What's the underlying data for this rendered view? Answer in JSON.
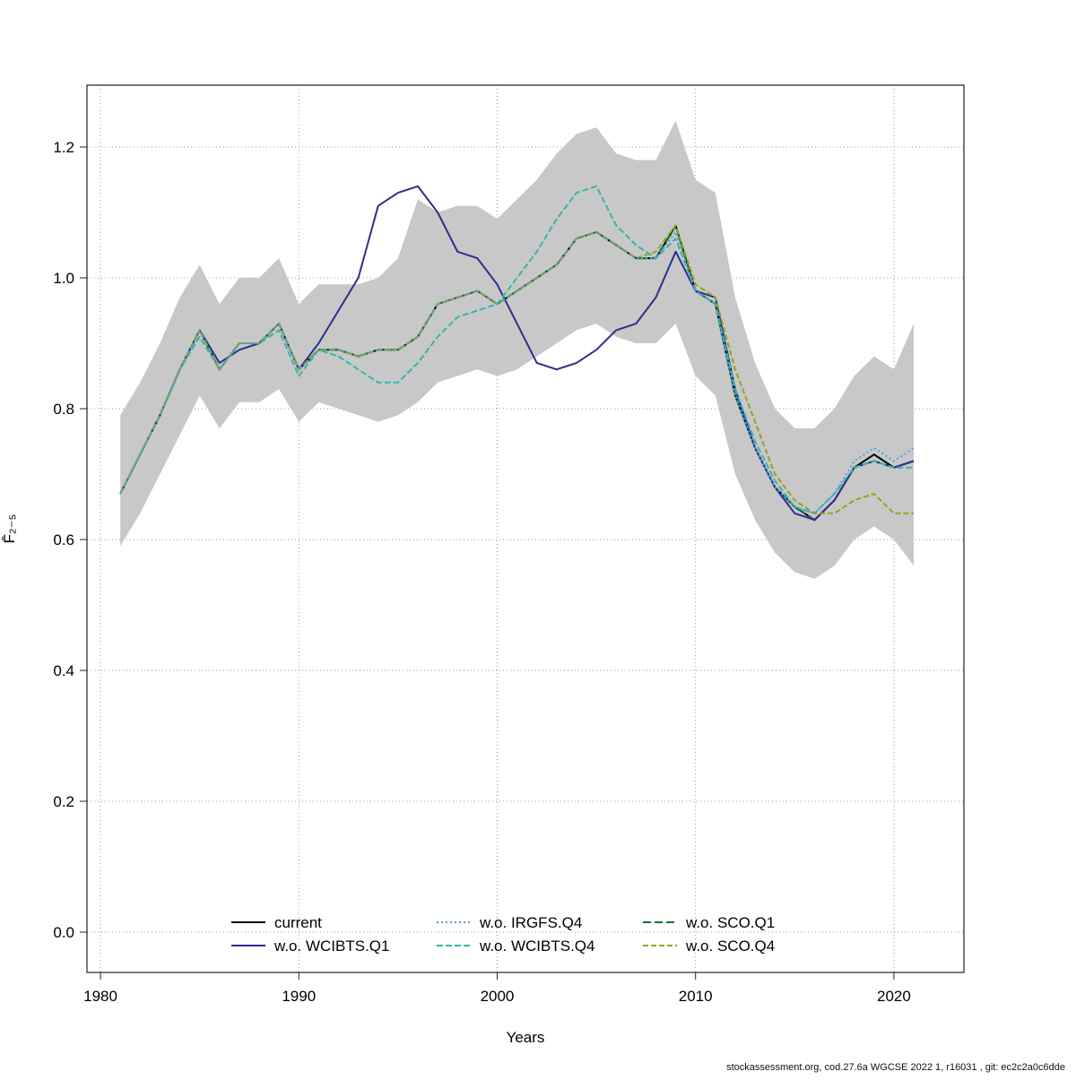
{
  "footer": {
    "text": "stockassessment.org, cod.27.6a WGCSE 2022 1, r16031 , git: ec2c2a0c6dde"
  },
  "chart_data": {
    "type": "line",
    "title": "",
    "xlabel": "Years",
    "ylabel": "F̄₂₋₅",
    "xlim": [
      1979.32,
      2023.53
    ],
    "ylim": [
      -0.0616,
      1.2945
    ],
    "xticks": [
      1980,
      1990,
      2000,
      2010,
      2020
    ],
    "yticks": [
      0.0,
      0.2,
      0.4,
      0.6,
      0.8,
      1.0,
      1.2
    ],
    "grid": true,
    "legend_position": "bottom-inside",
    "years": [
      1981,
      1982,
      1983,
      1984,
      1985,
      1986,
      1987,
      1988,
      1989,
      1990,
      1991,
      1992,
      1993,
      1994,
      1995,
      1996,
      1997,
      1998,
      1999,
      2000,
      2001,
      2002,
      2003,
      2004,
      2005,
      2006,
      2007,
      2008,
      2009,
      2010,
      2011,
      2012,
      2013,
      2014,
      2015,
      2016,
      2017,
      2018,
      2019,
      2020,
      2021
    ],
    "band": {
      "color": "#c8c8c8",
      "lower": [
        0.59,
        0.64,
        0.7,
        0.76,
        0.82,
        0.77,
        0.81,
        0.81,
        0.83,
        0.78,
        0.81,
        0.8,
        0.79,
        0.78,
        0.79,
        0.81,
        0.84,
        0.85,
        0.86,
        0.85,
        0.86,
        0.88,
        0.9,
        0.92,
        0.93,
        0.91,
        0.9,
        0.9,
        0.93,
        0.85,
        0.82,
        0.7,
        0.63,
        0.58,
        0.55,
        0.54,
        0.56,
        0.6,
        0.62,
        0.6,
        0.56
      ],
      "upper": [
        0.79,
        0.84,
        0.9,
        0.97,
        1.02,
        0.96,
        1.0,
        1.0,
        1.03,
        0.96,
        0.99,
        0.99,
        0.99,
        1.0,
        1.03,
        1.12,
        1.1,
        1.11,
        1.11,
        1.09,
        1.12,
        1.15,
        1.19,
        1.22,
        1.23,
        1.19,
        1.18,
        1.18,
        1.24,
        1.15,
        1.13,
        0.97,
        0.87,
        0.8,
        0.77,
        0.77,
        0.8,
        0.85,
        0.88,
        0.86,
        0.93
      ]
    },
    "series": [
      {
        "name": "current",
        "color": "#000000",
        "dash": "",
        "values": [
          0.67,
          0.73,
          0.79,
          0.86,
          0.92,
          0.86,
          0.9,
          0.9,
          0.93,
          0.86,
          0.89,
          0.89,
          0.88,
          0.89,
          0.89,
          0.91,
          0.96,
          0.97,
          0.98,
          0.96,
          0.98,
          1.0,
          1.02,
          1.06,
          1.07,
          1.05,
          1.03,
          1.03,
          1.08,
          0.98,
          0.96,
          0.82,
          0.74,
          0.68,
          0.65,
          0.63,
          0.66,
          0.71,
          0.73,
          0.71,
          0.72
        ]
      },
      {
        "name": "w.o. WCIBTS.Q1",
        "color": "#2e2e8f",
        "dash": "",
        "values": [
          0.67,
          0.73,
          0.79,
          0.86,
          0.92,
          0.87,
          0.89,
          0.9,
          0.93,
          0.86,
          0.9,
          0.95,
          1.0,
          1.11,
          1.13,
          1.14,
          1.1,
          1.04,
          1.03,
          0.99,
          0.93,
          0.87,
          0.86,
          0.87,
          0.89,
          0.92,
          0.93,
          0.97,
          1.04,
          0.98,
          0.97,
          0.83,
          0.74,
          0.68,
          0.64,
          0.63,
          0.66,
          0.71,
          0.72,
          0.71,
          0.72
        ]
      },
      {
        "name": "w.o. IRGFS.Q4",
        "color": "#4aa3df",
        "dash": "2,3",
        "values": [
          0.67,
          0.73,
          0.79,
          0.86,
          0.92,
          0.86,
          0.9,
          0.9,
          0.93,
          0.86,
          0.89,
          0.89,
          0.88,
          0.89,
          0.89,
          0.91,
          0.96,
          0.97,
          0.98,
          0.96,
          0.98,
          1.0,
          1.02,
          1.06,
          1.07,
          1.05,
          1.03,
          1.03,
          1.07,
          0.98,
          0.96,
          0.82,
          0.74,
          0.68,
          0.65,
          0.64,
          0.67,
          0.72,
          0.74,
          0.72,
          0.74
        ]
      },
      {
        "name": "w.o. WCIBTS.Q4",
        "color": "#35b5aa",
        "dash": "7,3",
        "values": [
          0.67,
          0.73,
          0.79,
          0.86,
          0.91,
          0.86,
          0.9,
          0.9,
          0.92,
          0.85,
          0.89,
          0.88,
          0.86,
          0.84,
          0.84,
          0.87,
          0.91,
          0.94,
          0.95,
          0.96,
          1.0,
          1.04,
          1.09,
          1.13,
          1.14,
          1.08,
          1.05,
          1.03,
          1.06,
          0.98,
          0.96,
          0.83,
          0.75,
          0.69,
          0.65,
          0.64,
          0.67,
          0.71,
          0.72,
          0.71,
          0.71
        ]
      },
      {
        "name": "w.o. SCO.Q1",
        "color": "#1c6b33",
        "dash": "9,4",
        "values": [
          0.67,
          0.73,
          0.79,
          0.86,
          0.92,
          0.86,
          0.9,
          0.9,
          0.93,
          0.86,
          0.89,
          0.89,
          0.88,
          0.89,
          0.89,
          0.91,
          0.96,
          0.97,
          0.98,
          0.96,
          0.98,
          1.0,
          1.02,
          1.06,
          1.07,
          1.05,
          1.03,
          1.03,
          1.08,
          0.98,
          0.96,
          0.82,
          0.74,
          0.68,
          0.65,
          0.63,
          0.66,
          0.71,
          0.72,
          0.71,
          0.72
        ]
      },
      {
        "name": "w.o. SCO.Q4",
        "color": "#9aa019",
        "dash": "6,3",
        "values": [
          0.67,
          0.73,
          0.79,
          0.86,
          0.92,
          0.86,
          0.9,
          0.9,
          0.93,
          0.86,
          0.89,
          0.89,
          0.88,
          0.89,
          0.89,
          0.91,
          0.96,
          0.97,
          0.98,
          0.96,
          0.98,
          1.0,
          1.02,
          1.06,
          1.07,
          1.05,
          1.03,
          1.04,
          1.08,
          0.99,
          0.97,
          0.86,
          0.78,
          0.7,
          0.66,
          0.64,
          0.64,
          0.66,
          0.67,
          0.64,
          0.64
        ]
      }
    ],
    "draw_order": [
      0,
      4,
      1,
      3,
      5,
      2
    ]
  }
}
